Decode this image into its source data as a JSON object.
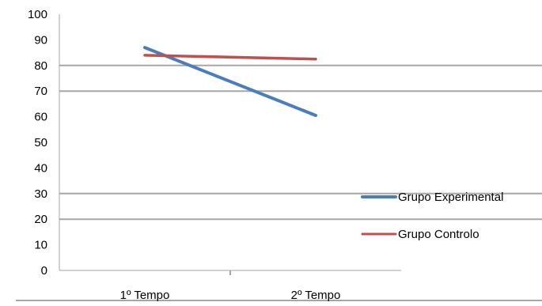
{
  "chart_data": {
    "type": "line",
    "categories": [
      "1º Tempo",
      "2º Tempo"
    ],
    "ylim": [
      0,
      100
    ],
    "yticks": [
      0,
      10,
      20,
      30,
      40,
      50,
      60,
      70,
      80,
      90,
      100
    ],
    "series": [
      {
        "name": "Grupo Experimental",
        "values": [
          87,
          60.5
        ],
        "color": "#4a7ebb"
      },
      {
        "name": "Grupo Controlo",
        "values": [
          84,
          82.5
        ],
        "color": "#c0504d"
      }
    ],
    "grid": "major horizontal at 20, 30, 70, 80",
    "legend": "right",
    "title": "",
    "xlabel": "",
    "ylabel": ""
  },
  "colors": {
    "gridline": "#a6a6a6",
    "axis": "#a6a6a6",
    "text": "#000000"
  }
}
